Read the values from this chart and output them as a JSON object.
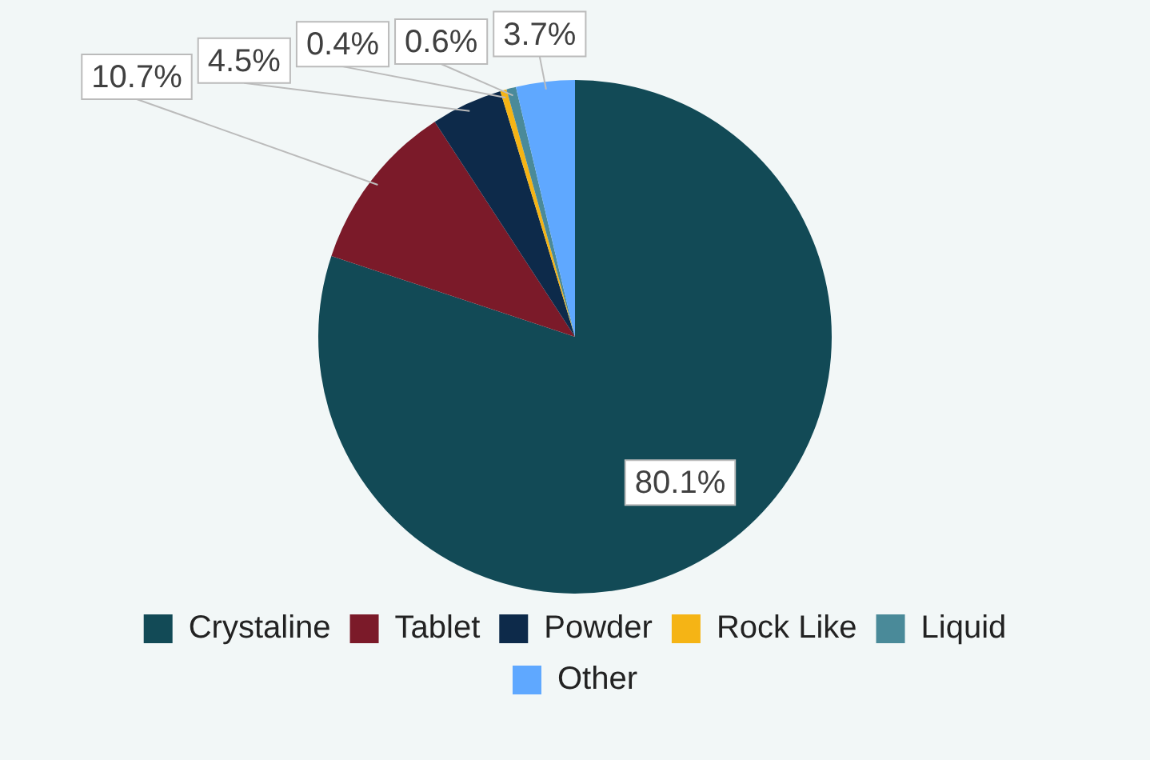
{
  "chart_data": {
    "type": "pie",
    "categories": [
      "Crystaline",
      "Tablet",
      "Powder",
      "Rock Like",
      "Liquid",
      "Other"
    ],
    "values": [
      80.1,
      10.7,
      4.5,
      0.4,
      0.6,
      3.7
    ],
    "colors": [
      "#124a56",
      "#7b1a29",
      "#0d2a4a",
      "#f5b415",
      "#4a8a99",
      "#5fa8ff"
    ],
    "value_labels": [
      "80.1%",
      "10.7%",
      "4.5%",
      "0.4%",
      "0.6%",
      "3.7%"
    ],
    "legend": "bottom"
  }
}
